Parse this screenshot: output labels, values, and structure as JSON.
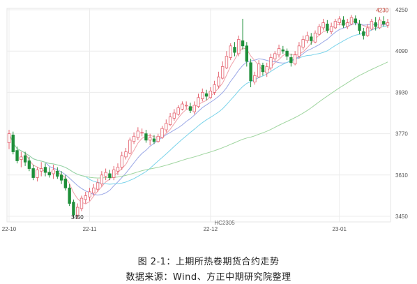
{
  "figure": {
    "caption": "图 2-1：上期所热卷期货合约走势",
    "source": "数据来源：Wind、方正中期研究院整理"
  },
  "chart_data": {
    "type": "candlestick",
    "series_label": "HC2305",
    "y_ticks": [
      3450,
      3610,
      3770,
      3930,
      4090,
      4250
    ],
    "ylim": [
      3420,
      4270
    ],
    "x_ticks": [
      {
        "label": "22-10",
        "index": 0
      },
      {
        "label": "22-11",
        "index": 20
      },
      {
        "label": "22-12",
        "index": 50
      },
      {
        "label": "23-01",
        "index": 82
      }
    ],
    "annotations": [
      {
        "text": "3450",
        "index": 19,
        "value": 3450
      },
      {
        "text": "4230",
        "index": 93,
        "value": 4230
      }
    ],
    "candles": [
      [
        3735,
        3770,
        3710,
        3785
      ],
      [
        3765,
        3700,
        3690,
        3778
      ],
      [
        3705,
        3665,
        3655,
        3720
      ],
      [
        3670,
        3680,
        3640,
        3700
      ],
      [
        3685,
        3660,
        3645,
        3700
      ],
      [
        3665,
        3635,
        3625,
        3680
      ],
      [
        3635,
        3600,
        3590,
        3650
      ],
      [
        3600,
        3630,
        3585,
        3640
      ],
      [
        3625,
        3635,
        3605,
        3660
      ],
      [
        3640,
        3620,
        3605,
        3655
      ],
      [
        3620,
        3610,
        3600,
        3640
      ],
      [
        3615,
        3630,
        3595,
        3650
      ],
      [
        3625,
        3605,
        3595,
        3640
      ],
      [
        3610,
        3590,
        3575,
        3625
      ],
      [
        3595,
        3560,
        3550,
        3610
      ],
      [
        3560,
        3500,
        3490,
        3575
      ],
      [
        3505,
        3455,
        3445,
        3515
      ],
      [
        3455,
        3485,
        3440,
        3500
      ],
      [
        3480,
        3520,
        3470,
        3530
      ],
      [
        3515,
        3530,
        3500,
        3545
      ],
      [
        3525,
        3545,
        3510,
        3560
      ],
      [
        3540,
        3560,
        3530,
        3575
      ],
      [
        3555,
        3580,
        3545,
        3595
      ],
      [
        3575,
        3610,
        3565,
        3625
      ],
      [
        3605,
        3620,
        3590,
        3635
      ],
      [
        3615,
        3600,
        3590,
        3630
      ],
      [
        3600,
        3630,
        3590,
        3645
      ],
      [
        3625,
        3640,
        3610,
        3655
      ],
      [
        3640,
        3685,
        3630,
        3700
      ],
      [
        3680,
        3700,
        3670,
        3715
      ],
      [
        3695,
        3745,
        3690,
        3755
      ],
      [
        3740,
        3760,
        3730,
        3775
      ],
      [
        3755,
        3780,
        3745,
        3795
      ],
      [
        3775,
        3775,
        3760,
        3790
      ],
      [
        3770,
        3745,
        3735,
        3785
      ],
      [
        3745,
        3755,
        3725,
        3770
      ],
      [
        3750,
        3740,
        3730,
        3765
      ],
      [
        3740,
        3760,
        3735,
        3770
      ],
      [
        3755,
        3790,
        3750,
        3800
      ],
      [
        3785,
        3810,
        3775,
        3825
      ],
      [
        3805,
        3835,
        3800,
        3850
      ],
      [
        3830,
        3850,
        3820,
        3865
      ],
      [
        3845,
        3870,
        3840,
        3880
      ],
      [
        3865,
        3885,
        3860,
        3895
      ],
      [
        3880,
        3880,
        3865,
        3895
      ],
      [
        3875,
        3860,
        3850,
        3890
      ],
      [
        3855,
        3880,
        3845,
        3895
      ],
      [
        3875,
        3910,
        3870,
        3925
      ],
      [
        3905,
        3930,
        3895,
        3945
      ],
      [
        3925,
        3915,
        3900,
        3940
      ],
      [
        3910,
        3935,
        3905,
        3950
      ],
      [
        3930,
        3960,
        3920,
        3975
      ],
      [
        3955,
        3990,
        3945,
        4010
      ],
      [
        3985,
        4030,
        3980,
        4050
      ],
      [
        4025,
        4070,
        4020,
        4090
      ],
      [
        4065,
        4110,
        4055,
        4120
      ],
      [
        4105,
        4085,
        4070,
        4125
      ],
      [
        4080,
        4135,
        4070,
        4150
      ],
      [
        4130,
        4110,
        4095,
        4215
      ],
      [
        4110,
        4050,
        4030,
        4125
      ],
      [
        4045,
        3975,
        3950,
        4060
      ],
      [
        3970,
        3995,
        3960,
        4010
      ],
      [
        3990,
        4040,
        3985,
        4055
      ],
      [
        4035,
        4010,
        3995,
        4045
      ],
      [
        4005,
        4030,
        3990,
        4045
      ],
      [
        4025,
        4065,
        4015,
        4080
      ],
      [
        4060,
        4080,
        4050,
        4090
      ],
      [
        4075,
        4100,
        4065,
        4115
      ],
      [
        4095,
        4090,
        4080,
        4110
      ],
      [
        4090,
        4070,
        4055,
        4100
      ],
      [
        4065,
        4045,
        4030,
        4080
      ],
      [
        4040,
        4075,
        4035,
        4090
      ],
      [
        4070,
        4110,
        4060,
        4125
      ],
      [
        4105,
        4135,
        4095,
        4150
      ],
      [
        4130,
        4150,
        4120,
        4165
      ],
      [
        4145,
        4130,
        4115,
        4160
      ],
      [
        4125,
        4160,
        4120,
        4170
      ],
      [
        4155,
        4185,
        4150,
        4195
      ],
      [
        4180,
        4200,
        4170,
        4215
      ],
      [
        4195,
        4170,
        4160,
        4210
      ],
      [
        4165,
        4185,
        4155,
        4200
      ],
      [
        4180,
        4205,
        4175,
        4215
      ],
      [
        4200,
        4215,
        4190,
        4225
      ],
      [
        4210,
        4190,
        4180,
        4225
      ],
      [
        4185,
        4200,
        4175,
        4215
      ],
      [
        4195,
        4220,
        4190,
        4230
      ],
      [
        4215,
        4200,
        4190,
        4228
      ],
      [
        4195,
        4170,
        4155,
        4210
      ],
      [
        4165,
        4150,
        4135,
        4180
      ],
      [
        4150,
        4180,
        4145,
        4195
      ],
      [
        4175,
        4205,
        4170,
        4215
      ],
      [
        4200,
        4185,
        4170,
        4222
      ],
      [
        4180,
        4210,
        4175,
        4222
      ],
      [
        4205,
        4195,
        4185,
        4225
      ],
      [
        4190,
        4200,
        4180,
        4215
      ]
    ]
  }
}
